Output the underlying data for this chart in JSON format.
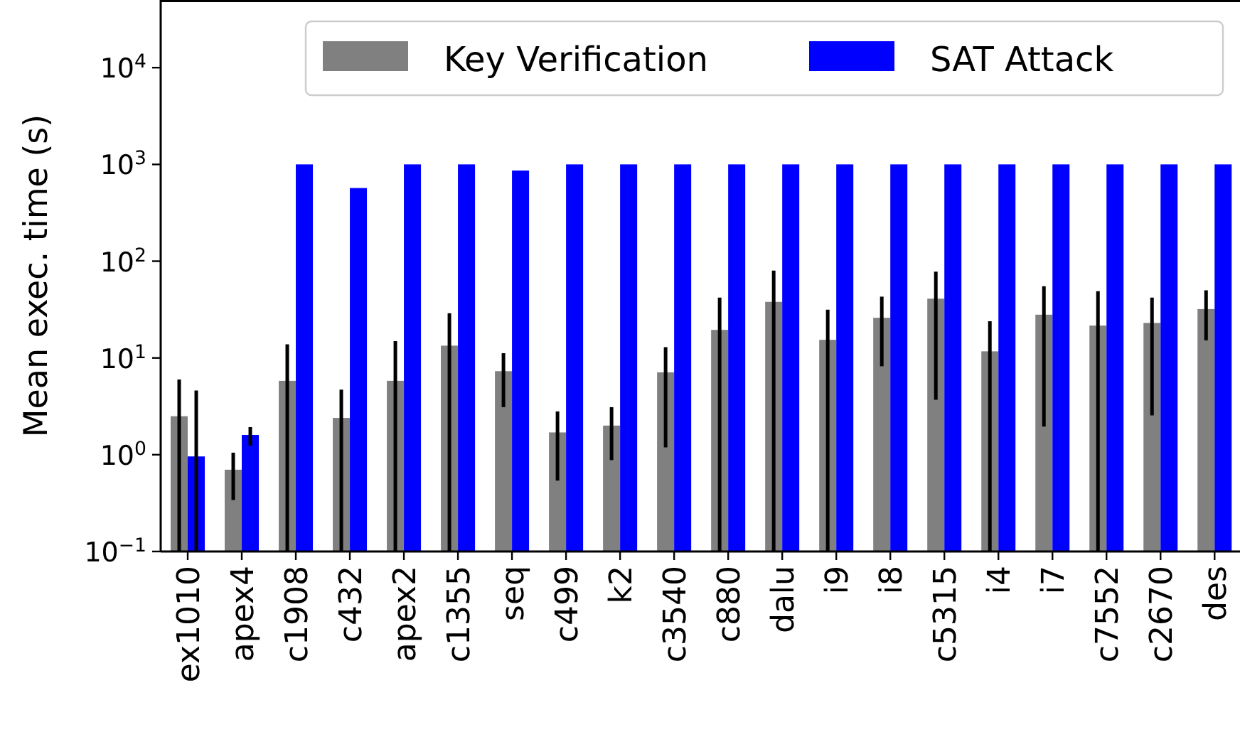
{
  "chart_data": {
    "type": "bar",
    "ylabel": "Mean exec. time (s)",
    "log": true,
    "ylim": [
      0.1,
      50000
    ],
    "yticks": [
      {
        "value": 0.1,
        "label": "10$^{−1}$"
      },
      {
        "value": 1,
        "label": "10$^{0}$"
      },
      {
        "value": 10,
        "label": "10$^{1}$"
      },
      {
        "value": 100,
        "label": "10$^{2}$"
      },
      {
        "value": 1000,
        "label": "10$^{3}$"
      },
      {
        "value": 10000,
        "label": "10$^{4}$"
      }
    ],
    "categories": [
      "ex1010",
      "apex4",
      "c1908",
      "c432",
      "apex2",
      "c1355",
      "seq",
      "c499",
      "k2",
      "c3540",
      "c880",
      "dalu",
      "i9",
      "i8",
      "c5315",
      "i4",
      "i7",
      "c7552",
      "c2670",
      "des"
    ],
    "series": [
      {
        "name": "Key Verification",
        "color": "#808080",
        "values": [
          2.5,
          0.7,
          5.8,
          2.4,
          5.8,
          13.4,
          7.3,
          1.7,
          2.0,
          7.1,
          19.5,
          38,
          15.4,
          26,
          41,
          11.7,
          28,
          21.6,
          23,
          32
        ],
        "errors": [
          [
            0.1,
            6.0
          ],
          [
            0.34,
            1.05
          ],
          [
            0.1,
            13.8
          ],
          [
            0.1,
            4.7
          ],
          [
            0.1,
            14.9
          ],
          [
            0.1,
            29
          ],
          [
            3.1,
            11.2
          ],
          [
            0.54,
            2.8
          ],
          [
            0.88,
            3.1
          ],
          [
            1.19,
            12.9
          ],
          [
            0.1,
            42
          ],
          [
            0.1,
            80
          ],
          [
            0.1,
            31.6
          ],
          [
            8.2,
            43
          ],
          [
            3.7,
            78
          ],
          [
            0.1,
            24
          ],
          [
            1.95,
            55
          ],
          [
            0.1,
            49
          ],
          [
            2.55,
            42
          ],
          [
            15.2,
            50
          ]
        ]
      },
      {
        "name": "SAT Attack",
        "color": "#0000ff",
        "values": [
          0.96,
          1.6,
          1000,
          570,
          1000,
          1000,
          865,
          1000,
          1000,
          1000,
          1000,
          1000,
          1000,
          1000,
          1000,
          1000,
          1000,
          1000,
          1000,
          1000
        ],
        "errors": [
          [
            0.1,
            4.6
          ],
          [
            1.24,
            1.93
          ],
          null,
          null,
          null,
          null,
          null,
          null,
          null,
          null,
          null,
          null,
          null,
          null,
          null,
          null,
          null,
          null,
          null,
          null
        ]
      }
    ],
    "legend": "top right"
  }
}
